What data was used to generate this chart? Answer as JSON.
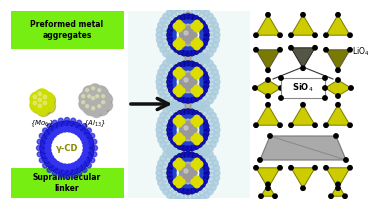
{
  "bg_color": "#ffffff",
  "left_panel_bg": "#77ee11",
  "title_top": "Preformed metal\naggregates",
  "title_bottom": "Supramolecular\nlinker",
  "mo6_label": "{Mo$_6$}",
  "al13_label": "{Al$_{13}$}",
  "cd_label": "γ-CD",
  "lio4_label": "LiO$_4$",
  "sio4_label": "SiO$_4$",
  "mo6_color": "#ccdd00",
  "mo6_shadow": "#999900",
  "al13_color": "#b0b0b0",
  "al13_shadow": "#888888",
  "cd_ring_color": "#2222dd",
  "cd_ring_dark": "#0000aa",
  "cd_label_color": "#888800",
  "arrow_color": "#111111",
  "crystal_yellow": "#cccc00",
  "crystal_yellow2": "#aaaa00",
  "crystal_olive": "#7a7a00",
  "crystal_dark": "#555544",
  "crystal_light": "#cccccc",
  "crystal_light2": "#aaaaaa",
  "cluster_yellow": "#dddd00",
  "cluster_gray": "#999999",
  "cluster_blue": "#1111bb",
  "cluster_lightblue": "#aaccdd",
  "middle_bg": "#ddeef8"
}
